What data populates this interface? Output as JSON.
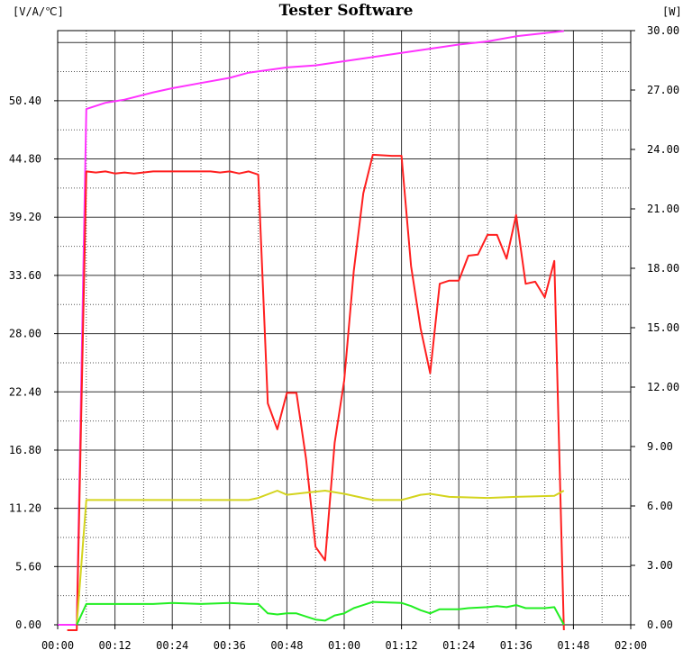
{
  "chart_data": {
    "type": "line",
    "title": "Tester Software",
    "ylabel_left": "[V/A/℃]",
    "ylabel_right": "[W]",
    "x_ticks": [
      "00:00",
      "00:12",
      "00:24",
      "00:36",
      "00:48",
      "01:00",
      "01:12",
      "01:24",
      "01:36",
      "01:48",
      "02:00"
    ],
    "xlim_minutes": [
      0,
      120
    ],
    "y_left_ticks": [
      "0.00",
      "5.60",
      "11.20",
      "16.80",
      "22.40",
      "28.00",
      "33.60",
      "39.20",
      "44.80",
      "50.40"
    ],
    "y_left_lim": [
      0,
      56
    ],
    "y_right_ticks": [
      "0.00",
      "3.00",
      "6.00",
      "9.00",
      "12.00",
      "15.00",
      "18.00",
      "21.00",
      "24.00",
      "27.00",
      "30.00"
    ],
    "y_right_lim": [
      0,
      30
    ],
    "grid": true,
    "series": [
      {
        "color": "#ff33ff",
        "axis": "left",
        "points": [
          [
            0,
            0
          ],
          [
            4,
            0
          ],
          [
            6,
            49.6
          ],
          [
            10,
            50.2
          ],
          [
            14,
            50.5
          ],
          [
            20,
            51.2
          ],
          [
            24,
            51.6
          ],
          [
            30,
            52.1
          ],
          [
            36,
            52.6
          ],
          [
            40,
            53.1
          ],
          [
            48,
            53.6
          ],
          [
            54,
            53.8
          ],
          [
            60,
            54.2
          ],
          [
            66,
            54.6
          ],
          [
            72,
            55.0
          ],
          [
            78,
            55.4
          ],
          [
            84,
            55.8
          ],
          [
            90,
            56.1
          ],
          [
            96,
            56.6
          ],
          [
            102,
            56.9
          ],
          [
            106,
            57.1
          ]
        ]
      },
      {
        "color": "#ff1f1f",
        "axis": "left",
        "points": [
          [
            2,
            -0.8
          ],
          [
            4,
            -0.8
          ],
          [
            6,
            43.6
          ],
          [
            8,
            43.5
          ],
          [
            10,
            43.6
          ],
          [
            12,
            43.4
          ],
          [
            14,
            43.5
          ],
          [
            16,
            43.4
          ],
          [
            20,
            43.6
          ],
          [
            24,
            43.6
          ],
          [
            28,
            43.6
          ],
          [
            32,
            43.6
          ],
          [
            34,
            43.5
          ],
          [
            36,
            43.6
          ],
          [
            38,
            43.4
          ],
          [
            40,
            43.6
          ],
          [
            42,
            43.3
          ],
          [
            44,
            21.3
          ],
          [
            46,
            18.8
          ],
          [
            48,
            22.3
          ],
          [
            50,
            22.3
          ],
          [
            52,
            16.0
          ],
          [
            54,
            7.5
          ],
          [
            56,
            6.2
          ],
          [
            58,
            17.5
          ],
          [
            60,
            23.5
          ],
          [
            62,
            34.0
          ],
          [
            64,
            41.5
          ],
          [
            66,
            45.2
          ],
          [
            70,
            45.1
          ],
          [
            72,
            45.1
          ],
          [
            74,
            34.5
          ],
          [
            76,
            28.5
          ],
          [
            78,
            24.2
          ],
          [
            80,
            32.8
          ],
          [
            82,
            33.1
          ],
          [
            84,
            33.1
          ],
          [
            86,
            35.5
          ],
          [
            88,
            35.6
          ],
          [
            90,
            37.5
          ],
          [
            92,
            37.5
          ],
          [
            94,
            35.2
          ],
          [
            96,
            39.4
          ],
          [
            98,
            32.8
          ],
          [
            100,
            33.0
          ],
          [
            102,
            31.5
          ],
          [
            104,
            35.0
          ],
          [
            106,
            -0.8
          ]
        ]
      },
      {
        "color": "#d4d41e",
        "axis": "left",
        "points": [
          [
            4,
            0
          ],
          [
            6,
            12.0
          ],
          [
            10,
            12.0
          ],
          [
            20,
            12.0
          ],
          [
            30,
            12.0
          ],
          [
            36,
            12.0
          ],
          [
            40,
            12.0
          ],
          [
            42,
            12.2
          ],
          [
            46,
            12.9
          ],
          [
            48,
            12.5
          ],
          [
            52,
            12.7
          ],
          [
            56,
            12.9
          ],
          [
            60,
            12.6
          ],
          [
            64,
            12.2
          ],
          [
            66,
            12.0
          ],
          [
            72,
            12.0
          ],
          [
            76,
            12.5
          ],
          [
            78,
            12.6
          ],
          [
            82,
            12.3
          ],
          [
            90,
            12.2
          ],
          [
            96,
            12.3
          ],
          [
            104,
            12.4
          ],
          [
            106,
            12.9
          ]
        ]
      },
      {
        "color": "#22ee22",
        "axis": "left",
        "points": [
          [
            4,
            0
          ],
          [
            6,
            2.0
          ],
          [
            10,
            2.0
          ],
          [
            20,
            2.0
          ],
          [
            24,
            2.1
          ],
          [
            30,
            2.0
          ],
          [
            36,
            2.1
          ],
          [
            40,
            2.0
          ],
          [
            42,
            2.0
          ],
          [
            44,
            1.1
          ],
          [
            46,
            1.0
          ],
          [
            48,
            1.1
          ],
          [
            50,
            1.1
          ],
          [
            52,
            0.8
          ],
          [
            54,
            0.5
          ],
          [
            56,
            0.4
          ],
          [
            58,
            0.9
          ],
          [
            60,
            1.1
          ],
          [
            62,
            1.6
          ],
          [
            64,
            1.9
          ],
          [
            66,
            2.2
          ],
          [
            72,
            2.1
          ],
          [
            74,
            1.8
          ],
          [
            76,
            1.4
          ],
          [
            78,
            1.1
          ],
          [
            80,
            1.5
          ],
          [
            84,
            1.5
          ],
          [
            86,
            1.6
          ],
          [
            90,
            1.7
          ],
          [
            92,
            1.8
          ],
          [
            94,
            1.7
          ],
          [
            96,
            1.9
          ],
          [
            98,
            1.6
          ],
          [
            102,
            1.6
          ],
          [
            104,
            1.7
          ],
          [
            106,
            0.0
          ]
        ]
      }
    ]
  }
}
